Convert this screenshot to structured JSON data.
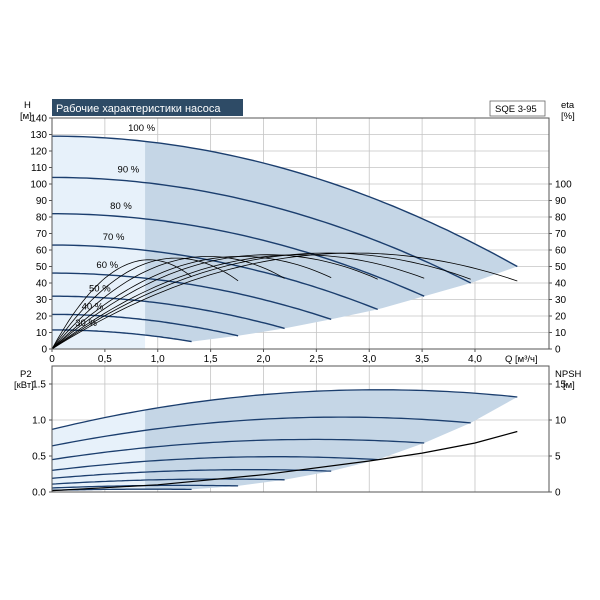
{
  "title": "Рабочие характеристики насоса",
  "model": "SQE 3-95",
  "colors": {
    "band": "#c5d6e6",
    "band_light": "#e7f1fa",
    "curve": "#1b3e6e",
    "title_bg": "#2e4b66",
    "eff_curve": "#000000"
  },
  "chart_data": [
    {
      "type": "line",
      "name": "head",
      "xlabel": "Q [м³/ч]",
      "ylabel_line1": "H",
      "ylabel_line2": "[м]",
      "y2label_line1": "eta",
      "y2label_line2": "[%]",
      "xlim": [
        0,
        4.7
      ],
      "ylim": [
        0,
        140
      ],
      "y2lim": [
        0,
        140
      ],
      "x_ticks": [
        0,
        0.5,
        1.0,
        1.5,
        2.0,
        2.5,
        3.0,
        3.5,
        4.0
      ],
      "x_tick_labels": [
        "0",
        "0,5",
        "1,0",
        "1,5",
        "2,0",
        "2,5",
        "3,0",
        "3,5",
        "4,0"
      ],
      "y_ticks": [
        0,
        10,
        20,
        30,
        40,
        50,
        60,
        70,
        80,
        90,
        100,
        110,
        120,
        130,
        140
      ],
      "y_tick_labels": [
        "0",
        "10",
        "20",
        "30",
        "40",
        "50",
        "60",
        "70",
        "80",
        "90",
        "100",
        "110",
        "120",
        "130",
        "140"
      ],
      "y2_ticks": [
        0,
        10,
        20,
        30,
        40,
        50,
        60,
        70,
        80,
        90,
        100
      ],
      "y2_tick_labels": [
        "0",
        "10",
        "20",
        "30",
        "40",
        "50",
        "60",
        "70",
        "80",
        "90",
        "100"
      ],
      "speed_curves": [
        {
          "label": "100 %",
          "label_x": 0.72,
          "label_y": 132,
          "qmax": 4.4,
          "h0": 129,
          "hmax_q": 50
        },
        {
          "label": "90 %",
          "label_x": 0.62,
          "label_y": 107,
          "qmax": 3.96,
          "h0": 104,
          "hmax_q": 40
        },
        {
          "label": "80 %",
          "label_x": 0.55,
          "label_y": 85,
          "qmax": 3.52,
          "h0": 82,
          "hmax_q": 32
        },
        {
          "label": "70 %",
          "label_x": 0.48,
          "label_y": 66,
          "qmax": 3.08,
          "h0": 63,
          "hmax_q": 24
        },
        {
          "label": "60 %",
          "label_x": 0.42,
          "label_y": 49,
          "qmax": 2.64,
          "h0": 46,
          "hmax_q": 18
        },
        {
          "label": "50 %",
          "label_x": 0.35,
          "label_y": 35,
          "qmax": 2.2,
          "h0": 32,
          "hmax_q": 12.5
        },
        {
          "label": "40 %",
          "label_x": 0.28,
          "label_y": 24,
          "qmax": 1.76,
          "h0": 21,
          "hmax_q": 8
        },
        {
          "label": "30 %",
          "label_x": 0.22,
          "label_y": 14,
          "qmax": 1.32,
          "h0": 11.6,
          "hmax_q": 4.5
        }
      ],
      "eff_curves": [
        {
          "qmax": 4.4,
          "peak_q": 2.8,
          "peak": 57
        },
        {
          "qmax": 3.96,
          "peak_q": 2.55,
          "peak": 57
        },
        {
          "qmax": 3.52,
          "peak_q": 2.3,
          "peak": 56
        },
        {
          "qmax": 3.08,
          "peak_q": 2.0,
          "peak": 56
        },
        {
          "qmax": 2.64,
          "peak_q": 1.75,
          "peak": 55
        },
        {
          "qmax": 2.2,
          "peak_q": 1.45,
          "peak": 55
        },
        {
          "qmax": 1.76,
          "peak_q": 1.15,
          "peak": 54
        },
        {
          "qmax": 1.32,
          "peak_q": 0.9,
          "peak": 53
        }
      ],
      "min_flow_q": 0.88
    },
    {
      "type": "line",
      "name": "power",
      "ylabel_line1": "P2",
      "ylabel_line2": "[кВт]",
      "y2label_line1": "NPSH",
      "y2label_line2": "[м]",
      "xlim": [
        0,
        4.7
      ],
      "ylim": [
        0,
        1.75
      ],
      "y2lim": [
        0,
        17.5
      ],
      "y_ticks": [
        0,
        0.5,
        1.0,
        1.5
      ],
      "y_tick_labels": [
        "0.0",
        "0.5",
        "1.0",
        "1.5"
      ],
      "y2_ticks": [
        0,
        5,
        10,
        15
      ],
      "y2_tick_labels": [
        "0",
        "5",
        "10",
        "15"
      ],
      "power_curves": [
        {
          "qmax": 4.4,
          "p0": 0.87,
          "pmid": 1.42,
          "pend": 1.32
        },
        {
          "qmax": 3.96,
          "p0": 0.64,
          "pmid": 1.04,
          "pend": 0.96
        },
        {
          "qmax": 3.52,
          "p0": 0.45,
          "pmid": 0.73,
          "pend": 0.68
        },
        {
          "qmax": 3.08,
          "p0": 0.3,
          "pmid": 0.49,
          "pend": 0.45
        },
        {
          "qmax": 2.64,
          "p0": 0.19,
          "pmid": 0.31,
          "pend": 0.29
        },
        {
          "qmax": 2.2,
          "p0": 0.11,
          "pmid": 0.18,
          "pend": 0.17
        },
        {
          "qmax": 1.76,
          "p0": 0.056,
          "pmid": 0.092,
          "pend": 0.085
        },
        {
          "qmax": 1.32,
          "p0": 0.024,
          "pmid": 0.039,
          "pend": 0.036
        }
      ],
      "npsh_curve": [
        {
          "q": 0.0,
          "npsh": 0.2
        },
        {
          "q": 1.0,
          "npsh": 1.0
        },
        {
          "q": 2.0,
          "npsh": 2.4
        },
        {
          "q": 3.0,
          "npsh": 4.3
        },
        {
          "q": 3.5,
          "npsh": 5.4
        },
        {
          "q": 4.0,
          "npsh": 6.8
        },
        {
          "q": 4.4,
          "npsh": 8.4
        }
      ]
    }
  ]
}
